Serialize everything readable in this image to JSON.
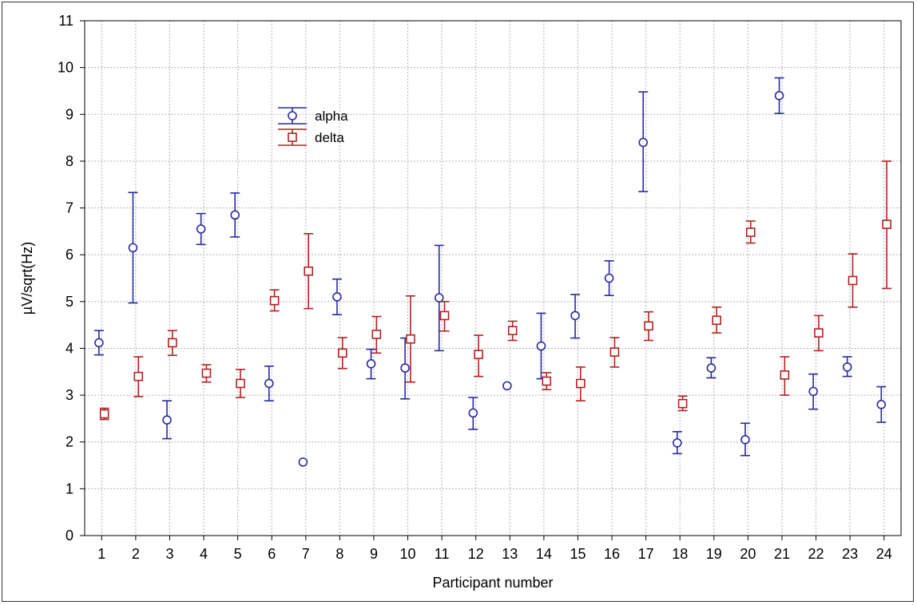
{
  "chart_data": {
    "type": "scatter",
    "xlabel": "Participant number",
    "ylabel": "µV/sqrt(Hz)",
    "xlim": [
      0.5,
      24.5
    ],
    "ylim": [
      0,
      11
    ],
    "x_ticks": [
      "1",
      "2",
      "3",
      "4",
      "5",
      "6",
      "7",
      "8",
      "9",
      "10",
      "11",
      "12",
      "13",
      "14",
      "15",
      "16",
      "17",
      "18",
      "19",
      "20",
      "21",
      "22",
      "23",
      "24"
    ],
    "y_ticks": [
      "0",
      "1",
      "2",
      "3",
      "4",
      "5",
      "6",
      "7",
      "8",
      "9",
      "10",
      "11"
    ],
    "grid": true,
    "legend_position": "top-left (inside plot)",
    "series": [
      {
        "name": "alpha",
        "color": "#2a2a9e",
        "marker": "circle",
        "offset": -0.08,
        "x": [
          1,
          2,
          3,
          4,
          5,
          6,
          7,
          8,
          9,
          10,
          11,
          12,
          13,
          14,
          15,
          16,
          17,
          18,
          19,
          20,
          21,
          22,
          23,
          24
        ],
        "y": [
          4.12,
          6.15,
          2.47,
          6.55,
          6.85,
          3.25,
          1.57,
          5.1,
          3.67,
          3.58,
          5.08,
          2.62,
          3.2,
          4.05,
          4.7,
          5.5,
          8.4,
          1.98,
          3.58,
          2.05,
          9.4,
          3.08,
          3.6,
          2.8
        ],
        "y_low": [
          3.86,
          4.97,
          2.07,
          6.22,
          6.38,
          2.88,
          1.57,
          4.72,
          3.35,
          2.92,
          3.95,
          2.27,
          3.2,
          3.35,
          4.22,
          5.13,
          7.35,
          1.75,
          3.37,
          1.71,
          9.02,
          2.7,
          3.4,
          2.42
        ],
        "y_high": [
          4.38,
          7.33,
          2.88,
          6.88,
          7.32,
          3.62,
          1.57,
          5.48,
          3.98,
          4.22,
          6.2,
          2.95,
          3.2,
          4.75,
          5.15,
          5.87,
          9.48,
          2.22,
          3.8,
          2.4,
          9.78,
          3.45,
          3.82,
          3.18
        ]
      },
      {
        "name": "delta",
        "color": "#b22222",
        "marker": "square",
        "offset": 0.08,
        "x": [
          1,
          2,
          3,
          4,
          5,
          6,
          7,
          8,
          9,
          10,
          11,
          12,
          13,
          14,
          15,
          16,
          17,
          18,
          19,
          20,
          21,
          22,
          23,
          24
        ],
        "y": [
          2.6,
          3.4,
          4.12,
          3.47,
          3.25,
          5.02,
          5.65,
          3.9,
          4.3,
          4.2,
          4.7,
          3.87,
          4.38,
          3.3,
          3.25,
          3.92,
          4.48,
          2.82,
          4.6,
          6.48,
          3.43,
          4.33,
          5.45,
          6.65
        ],
        "y_low": [
          2.48,
          2.97,
          3.85,
          3.28,
          2.95,
          4.8,
          4.85,
          3.57,
          3.9,
          3.28,
          4.37,
          3.4,
          4.17,
          3.12,
          2.88,
          3.6,
          4.17,
          2.67,
          4.33,
          6.25,
          3.0,
          3.95,
          4.88,
          5.28
        ],
        "y_high": [
          2.72,
          3.82,
          4.38,
          3.65,
          3.55,
          5.25,
          6.45,
          4.23,
          4.68,
          5.12,
          5.0,
          4.28,
          4.58,
          3.48,
          3.6,
          4.23,
          4.78,
          2.98,
          4.88,
          6.72,
          3.82,
          4.7,
          6.02,
          8.0
        ]
      }
    ]
  }
}
